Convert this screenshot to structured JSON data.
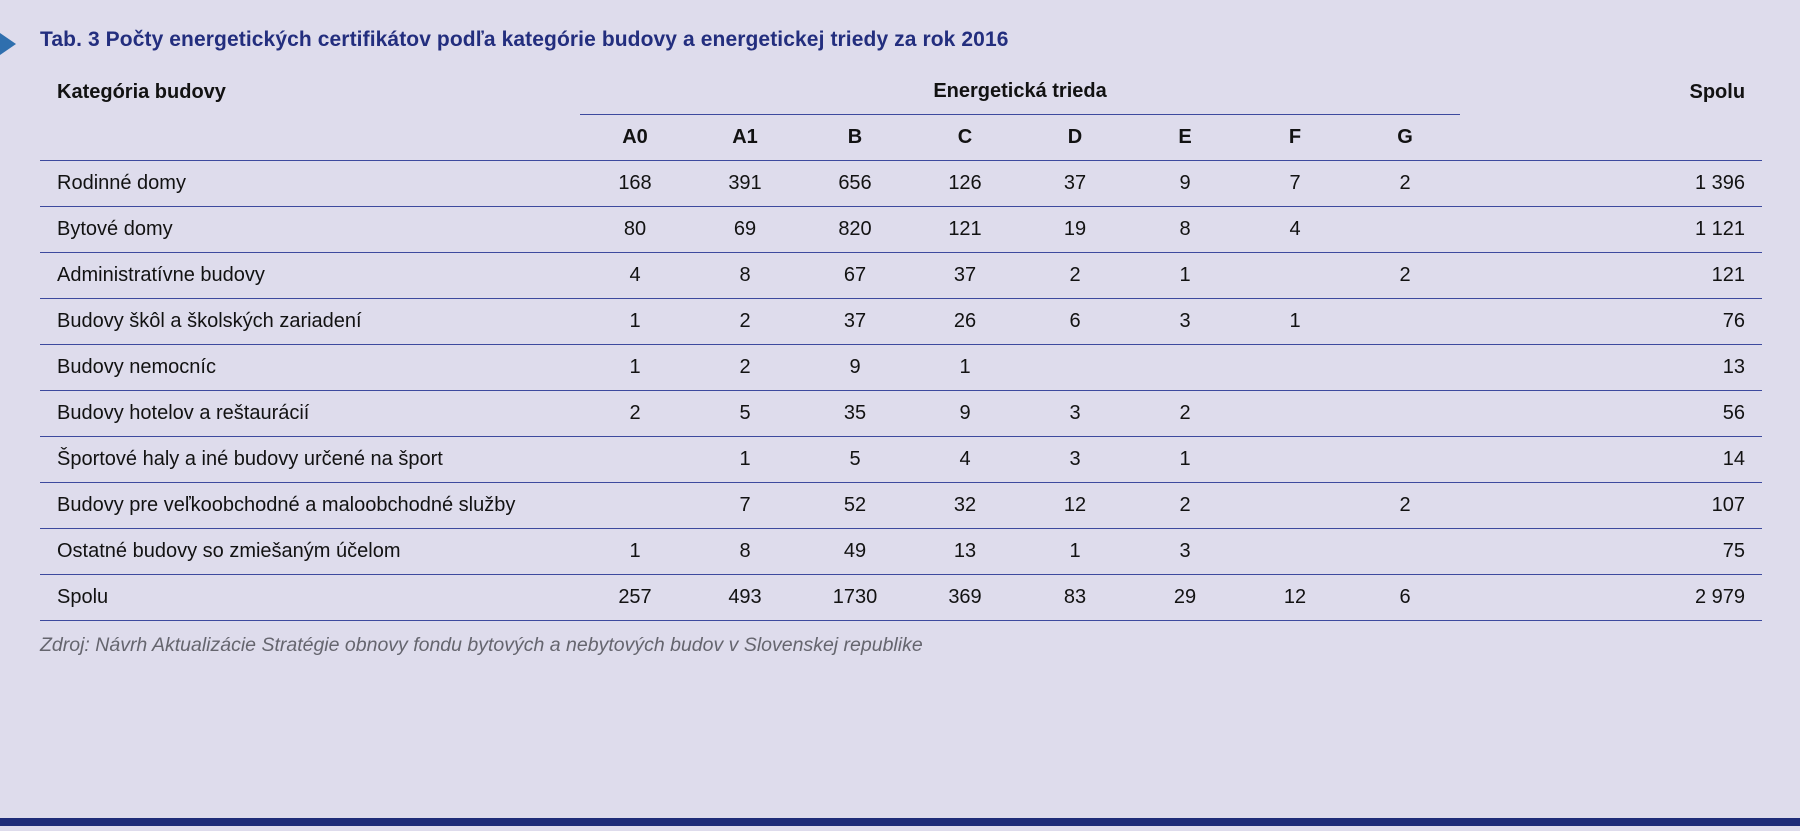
{
  "title": "Tab. 3 Počty energetických certifikátov podľa kategórie budovy a energetickej triedy za rok 2016",
  "source": "Zdroj: Návrh Aktualizácie Stratégie obnovy fondu bytových a nebytových budov v Slovenskej republike",
  "table": {
    "category_header": "Kategória budovy",
    "group_header": "Energetická trieda",
    "total_header": "Spolu",
    "class_headers": [
      "A0",
      "A1",
      "B",
      "C",
      "D",
      "E",
      "F",
      "G"
    ],
    "rows": [
      {
        "label": "Rodinné domy",
        "values": [
          "168",
          "391",
          "656",
          "126",
          "37",
          "9",
          "7",
          "2"
        ],
        "total": "1 396"
      },
      {
        "label": "Bytové domy",
        "values": [
          "80",
          "69",
          "820",
          "121",
          "19",
          "8",
          "4",
          ""
        ],
        "total": "1 121"
      },
      {
        "label": "Administratívne budovy",
        "values": [
          "4",
          "8",
          "67",
          "37",
          "2",
          "1",
          "",
          "2"
        ],
        "total": "121"
      },
      {
        "label": "Budovy škôl a školských zariadení",
        "values": [
          "1",
          "2",
          "37",
          "26",
          "6",
          "3",
          "1",
          ""
        ],
        "total": "76"
      },
      {
        "label": "Budovy nemocníc",
        "values": [
          "1",
          "2",
          "9",
          "1",
          "",
          "",
          "",
          ""
        ],
        "total": "13"
      },
      {
        "label": "Budovy hotelov a reštaurácií",
        "values": [
          "2",
          "5",
          "35",
          "9",
          "3",
          "2",
          "",
          ""
        ],
        "total": "56"
      },
      {
        "label": "Športové haly a iné budovy určené na šport",
        "values": [
          "",
          "1",
          "5",
          "4",
          "3",
          "1",
          "",
          ""
        ],
        "total": "14"
      },
      {
        "label": "Budovy pre veľkoobchodné a maloobchodné služby",
        "values": [
          "",
          "7",
          "52",
          "32",
          "12",
          "2",
          "",
          "2"
        ],
        "total": "107"
      },
      {
        "label": "Ostatné budovy so zmiešaným účelom",
        "values": [
          "1",
          "8",
          "49",
          "13",
          "1",
          "3",
          "",
          ""
        ],
        "total": "75"
      },
      {
        "label": "Spolu",
        "values": [
          "257",
          "493",
          "1730",
          "369",
          "83",
          "29",
          "12",
          "6"
        ],
        "total": "2 979"
      }
    ]
  },
  "colors": {
    "background": "#dedcec",
    "title_text": "#232e7e",
    "rule_line": "#3d4a9e",
    "bottom_bar": "#1e2c78",
    "marker_blue": "#2f6fae",
    "source_text": "#65656e"
  }
}
